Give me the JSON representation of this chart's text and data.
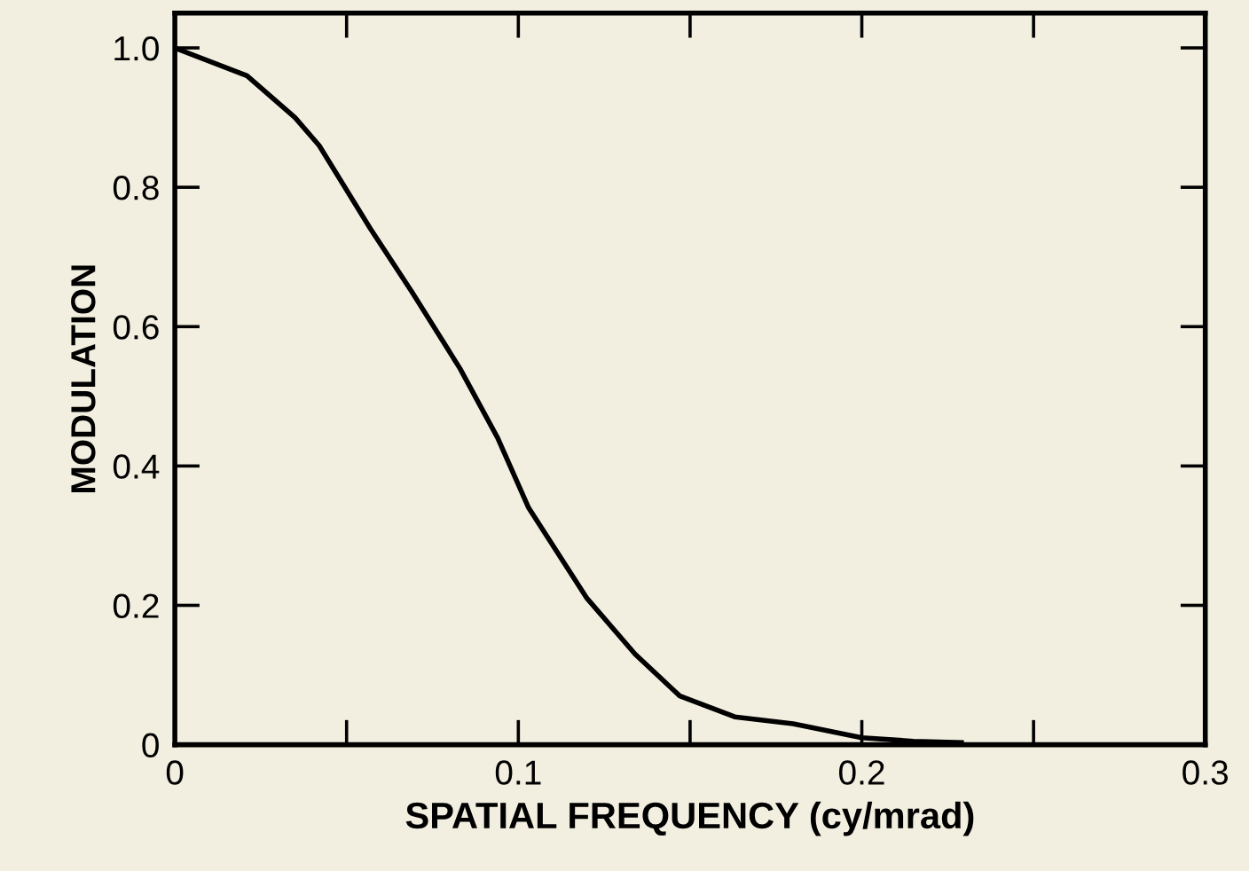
{
  "chart_data": {
    "type": "line",
    "xlabel": "SPATIAL FREQUENCY (cy/mrad)",
    "ylabel": "MODULATION",
    "x": [
      0,
      0.021,
      0.035,
      0.042,
      0.057,
      0.069,
      0.083,
      0.094,
      0.103,
      0.12,
      0.134,
      0.147,
      0.163,
      0.18,
      0.2,
      0.215,
      0.229
    ],
    "series": [
      {
        "color": "#000000",
        "values": [
          1.0,
          0.96,
          0.9,
          0.86,
          0.74,
          0.65,
          0.54,
          0.44,
          0.34,
          0.21,
          0.13,
          0.07,
          0.04,
          0.03,
          0.01,
          0.005,
          0.003
        ]
      }
    ],
    "xlim": [
      0,
      0.3
    ],
    "ylim": [
      0,
      1.05
    ],
    "xticks": [
      0,
      {
        "value": 0.05,
        "label": null
      },
      0.1,
      {
        "value": 0.15,
        "label": null
      },
      0.2,
      {
        "value": 0.25,
        "label": null
      },
      0.3
    ],
    "yticks": [
      0,
      0.2,
      0.4,
      0.6,
      0.8,
      {
        "value": 1.0,
        "label": "1.0"
      }
    ],
    "grid": false,
    "legend": false,
    "marker": "none",
    "line_style": "solid"
  }
}
